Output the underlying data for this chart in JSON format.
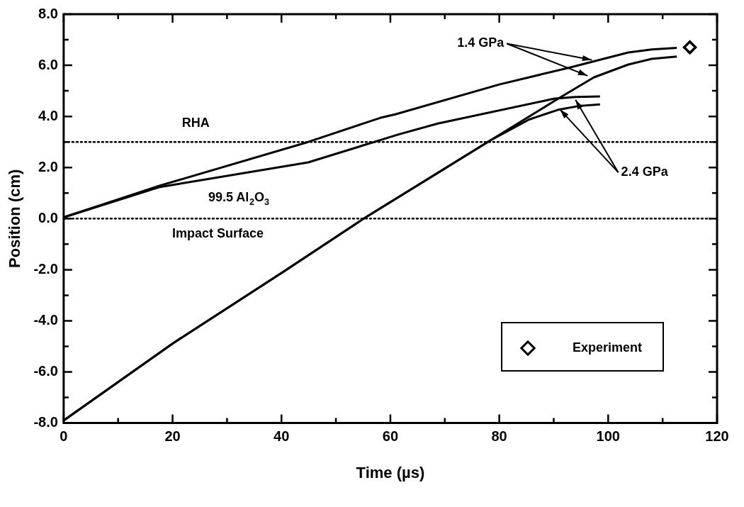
{
  "chart_data": {
    "type": "line",
    "xlabel": "Time (µs)",
    "ylabel": "Position (cm)",
    "xlim": [
      0,
      120
    ],
    "ylim": [
      -8,
      8
    ],
    "xticks": [
      0,
      {
        "value": 10,
        "label": null
      },
      20,
      {
        "value": 30,
        "label": null
      },
      40,
      {
        "value": 50,
        "label": null
      },
      60,
      {
        "value": 70,
        "label": null
      },
      80,
      {
        "value": 90,
        "label": null
      },
      100,
      {
        "value": 110,
        "label": null
      },
      120
    ],
    "yticks": [
      {
        "value": -8,
        "label": "-8.0"
      },
      {
        "value": -7,
        "label": null
      },
      {
        "value": -6,
        "label": "-6.0"
      },
      {
        "value": -5,
        "label": null
      },
      {
        "value": -4,
        "label": "-4.0"
      },
      {
        "value": -3,
        "label": null
      },
      {
        "value": -2,
        "label": "-2.0"
      },
      {
        "value": -1,
        "label": null
      },
      {
        "value": 0,
        "label": "0.0"
      },
      {
        "value": 1,
        "label": null
      },
      {
        "value": 2,
        "label": "2.0"
      },
      {
        "value": 3,
        "label": null
      },
      {
        "value": 4,
        "label": "4.0"
      },
      {
        "value": 5,
        "label": null
      },
      {
        "value": 6,
        "label": "6.0"
      },
      {
        "value": 7,
        "label": null
      },
      {
        "value": 8,
        "label": "8.0"
      }
    ],
    "grid": false,
    "legend": "bottom right",
    "marker": "none",
    "line_style": "solid",
    "series": [
      {
        "color": "#000000",
        "x": [
          0,
          17.5,
          44.9,
          58.1,
          60.9,
          80,
          92.7,
          103.7,
          108,
          112.6
        ],
        "values": [
          0.05,
          1.28,
          3.0,
          3.94,
          4.08,
          5.25,
          5.9,
          6.5,
          6.62,
          6.68
        ]
      },
      {
        "color": "#000000",
        "x": [
          0,
          20.2,
          40.4,
          55.1,
          78.2,
          91,
          97.4,
          103.7,
          108,
          112.6
        ],
        "values": [
          -7.9,
          -4.86,
          -2.07,
          0,
          3.04,
          4.72,
          5.53,
          6.03,
          6.25,
          6.34
        ]
      },
      {
        "color": "#000000",
        "x": [
          0,
          17.5,
          44.9,
          61.6,
          68.7,
          90,
          94,
          98.5
        ],
        "values": [
          0.05,
          1.23,
          2.2,
          3.3,
          3.72,
          4.69,
          4.76,
          4.78
        ]
      },
      {
        "color": "#000000",
        "x": [
          0,
          20.2,
          40.4,
          55.1,
          78.2,
          85.5,
          91,
          94.7,
          98.5
        ],
        "values": [
          -7.9,
          -4.86,
          -2.07,
          0,
          3.04,
          3.88,
          4.27,
          4.41,
          4.47
        ]
      },
      {
        "type": "scatter",
        "name": "Experiment",
        "color": "#000000",
        "marker": "diamond",
        "x": [
          115
        ],
        "values": [
          6.7
        ]
      }
    ],
    "ref_lines": [
      {
        "axis": "y",
        "value": 3,
        "line_style": "dotted",
        "color": "#000000"
      },
      {
        "axis": "y",
        "value": 0,
        "line_style": "dotted",
        "color": "#000000"
      }
    ],
    "annotations": [
      "RHA",
      "99.5 Al$_{2}$O$_{3}$",
      "Impact Surface",
      {
        "text": "1.4 GPa",
        "x": 97,
        "y": 6.1
      },
      {
        "text": "2.4 GPa",
        "x": 94,
        "y": 4.76
      }
    ]
  }
}
